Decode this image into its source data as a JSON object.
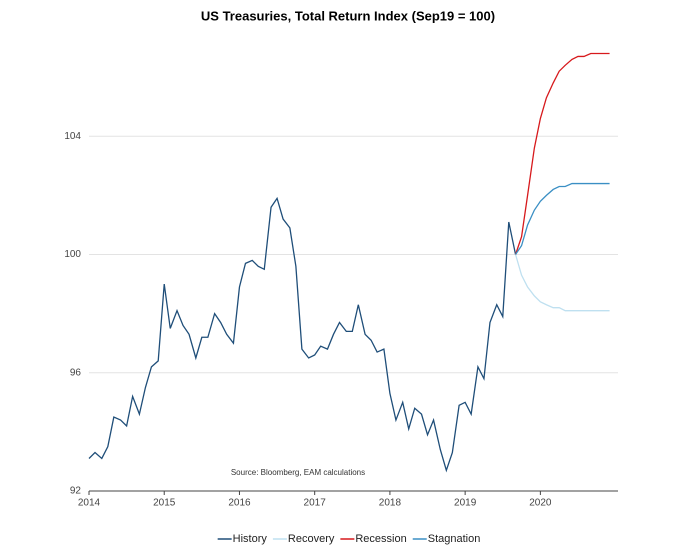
{
  "chart_data": {
    "type": "line",
    "title": "US Treasuries, Total Return Index (Sep19 = 100)",
    "annotation": "Source: Bloomberg, EAM calculations",
    "xlim": [
      2014,
      2021
    ],
    "xticks": [
      2014,
      2015,
      2016,
      2017,
      2018,
      2019,
      2020
    ],
    "ylim": [
      92,
      108
    ],
    "yticks": [
      92,
      96,
      100,
      104
    ],
    "grid": true,
    "legend": "bottom",
    "series": [
      {
        "name": "History",
        "color": "#1f4e79",
        "x": [
          2014,
          2014.08,
          2014.17,
          2014.25,
          2014.33,
          2014.42,
          2014.5,
          2014.58,
          2014.67,
          2014.75,
          2014.83,
          2014.92,
          2015,
          2015.08,
          2015.17,
          2015.25,
          2015.33,
          2015.42,
          2015.5,
          2015.58,
          2015.67,
          2015.75,
          2015.83,
          2015.92,
          2016,
          2016.08,
          2016.17,
          2016.25,
          2016.33,
          2016.42,
          2016.5,
          2016.58,
          2016.67,
          2016.75,
          2016.83,
          2016.92,
          2017,
          2017.08,
          2017.17,
          2017.25,
          2017.33,
          2017.42,
          2017.5,
          2017.58,
          2017.67,
          2017.75,
          2017.83,
          2017.92,
          2018,
          2018.08,
          2018.17,
          2018.25,
          2018.33,
          2018.42,
          2018.5,
          2018.58,
          2018.67,
          2018.75,
          2018.83,
          2018.92,
          2019,
          2019.08,
          2019.17,
          2019.25,
          2019.33,
          2019.42,
          2019.5,
          2019.58,
          2019.67
        ],
        "values": [
          93.1,
          93.3,
          93.1,
          93.5,
          94.5,
          94.4,
          94.2,
          95.2,
          94.6,
          95.5,
          96.2,
          96.4,
          99.0,
          97.5,
          98.1,
          97.6,
          97.3,
          96.5,
          97.2,
          97.2,
          98.0,
          97.7,
          97.3,
          97.0,
          98.9,
          99.7,
          99.8,
          99.6,
          99.5,
          101.6,
          101.9,
          101.2,
          100.9,
          99.6,
          96.8,
          96.5,
          96.6,
          96.9,
          96.8,
          97.3,
          97.7,
          97.4,
          97.4,
          98.3,
          97.3,
          97.1,
          96.7,
          96.8,
          95.3,
          94.4,
          95.0,
          94.1,
          94.8,
          94.6,
          93.9,
          94.4,
          93.4,
          92.7,
          93.3,
          94.9,
          95.0,
          94.6,
          96.2,
          95.8,
          97.7,
          98.3,
          97.9,
          101.1,
          100.0
        ]
      },
      {
        "name": "Recovery",
        "color": "#bfe0f0",
        "x": [
          2019.67,
          2019.75,
          2019.83,
          2019.92,
          2020,
          2020.08,
          2020.17,
          2020.25,
          2020.33,
          2020.42,
          2020.5,
          2020.58,
          2020.67,
          2020.75,
          2020.83,
          2020.92
        ],
        "values": [
          100.0,
          99.3,
          98.9,
          98.6,
          98.4,
          98.3,
          98.2,
          98.2,
          98.1,
          98.1,
          98.1,
          98.1,
          98.1,
          98.1,
          98.1,
          98.1
        ]
      },
      {
        "name": "Recession",
        "color": "#d7191c",
        "x": [
          2019.67,
          2019.75,
          2019.83,
          2019.92,
          2020,
          2020.08,
          2020.17,
          2020.25,
          2020.33,
          2020.42,
          2020.5,
          2020.58,
          2020.67,
          2020.75,
          2020.83,
          2020.92
        ],
        "values": [
          100.0,
          100.6,
          102.0,
          103.6,
          104.6,
          105.3,
          105.8,
          106.2,
          106.4,
          106.6,
          106.7,
          106.7,
          106.8,
          106.8,
          106.8,
          106.8
        ]
      },
      {
        "name": "Stagnation",
        "color": "#3a8fc4",
        "x": [
          2019.67,
          2019.75,
          2019.83,
          2019.92,
          2020,
          2020.08,
          2020.17,
          2020.25,
          2020.33,
          2020.42,
          2020.5,
          2020.58,
          2020.67,
          2020.75,
          2020.83,
          2020.92
        ],
        "values": [
          100.0,
          100.3,
          101.0,
          101.5,
          101.8,
          102.0,
          102.2,
          102.3,
          102.3,
          102.4,
          102.4,
          102.4,
          102.4,
          102.4,
          102.4,
          102.4
        ]
      }
    ]
  }
}
